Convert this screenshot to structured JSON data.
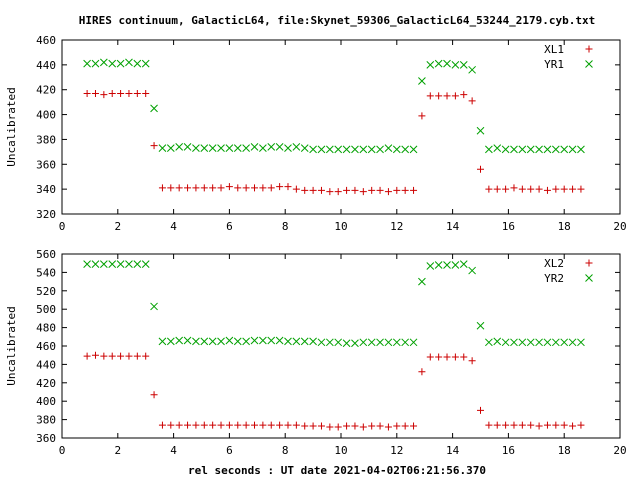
{
  "title": "HIRES continuum, GalacticL64, file:Skynet_59306_GalacticL64_53244_2179.cyb.txt",
  "xlabel": "rel seconds : UT date 2021-04-02T06:21:56.370",
  "colors": {
    "red": "#cc0000",
    "green": "#00a000",
    "axis": "#000000"
  },
  "chart_data": [
    {
      "type": "scatter",
      "ylabel": "Uncalibrated",
      "xlim": [
        0,
        20
      ],
      "ylim": [
        320,
        460
      ],
      "xticks": [
        0,
        2,
        4,
        6,
        8,
        10,
        12,
        14,
        16,
        18,
        20
      ],
      "yticks": [
        320,
        340,
        360,
        380,
        400,
        420,
        440,
        460
      ],
      "grid": false,
      "legend": "top-right",
      "series": [
        {
          "name": "XL1",
          "marker": "plus",
          "color": "#cc0000",
          "points": [
            [
              0.9,
              417
            ],
            [
              1.2,
              417
            ],
            [
              1.5,
              416
            ],
            [
              1.8,
              417
            ],
            [
              2.1,
              417
            ],
            [
              2.4,
              417
            ],
            [
              2.7,
              417
            ],
            [
              3.0,
              417
            ],
            [
              3.3,
              375
            ],
            [
              3.6,
              341
            ],
            [
              3.9,
              341
            ],
            [
              4.2,
              341
            ],
            [
              4.5,
              341
            ],
            [
              4.8,
              341
            ],
            [
              5.1,
              341
            ],
            [
              5.4,
              341
            ],
            [
              5.7,
              341
            ],
            [
              6.0,
              342
            ],
            [
              6.3,
              341
            ],
            [
              6.6,
              341
            ],
            [
              6.9,
              341
            ],
            [
              7.2,
              341
            ],
            [
              7.5,
              341
            ],
            [
              7.8,
              342
            ],
            [
              8.1,
              342
            ],
            [
              8.4,
              340
            ],
            [
              8.7,
              339
            ],
            [
              9.0,
              339
            ],
            [
              9.3,
              339
            ],
            [
              9.6,
              338
            ],
            [
              9.9,
              338
            ],
            [
              10.2,
              339
            ],
            [
              10.5,
              339
            ],
            [
              10.8,
              338
            ],
            [
              11.1,
              339
            ],
            [
              11.4,
              339
            ],
            [
              11.7,
              338
            ],
            [
              12.0,
              339
            ],
            [
              12.3,
              339
            ],
            [
              12.6,
              339
            ],
            [
              12.9,
              399
            ],
            [
              13.2,
              415
            ],
            [
              13.5,
              415
            ],
            [
              13.8,
              415
            ],
            [
              14.1,
              415
            ],
            [
              14.4,
              416
            ],
            [
              14.7,
              411
            ],
            [
              15.0,
              356
            ],
            [
              15.3,
              340
            ],
            [
              15.6,
              340
            ],
            [
              15.9,
              340
            ],
            [
              16.2,
              341
            ],
            [
              16.5,
              340
            ],
            [
              16.8,
              340
            ],
            [
              17.1,
              340
            ],
            [
              17.4,
              339
            ],
            [
              17.7,
              340
            ],
            [
              18.0,
              340
            ],
            [
              18.3,
              340
            ],
            [
              18.6,
              340
            ]
          ]
        },
        {
          "name": "YR1",
          "marker": "cross",
          "color": "#00a000",
          "points": [
            [
              0.9,
              441
            ],
            [
              1.2,
              441
            ],
            [
              1.5,
              442
            ],
            [
              1.8,
              441
            ],
            [
              2.1,
              441
            ],
            [
              2.4,
              442
            ],
            [
              2.7,
              441
            ],
            [
              3.0,
              441
            ],
            [
              3.3,
              405
            ],
            [
              3.6,
              373
            ],
            [
              3.9,
              373
            ],
            [
              4.2,
              374
            ],
            [
              4.5,
              374
            ],
            [
              4.8,
              373
            ],
            [
              5.1,
              373
            ],
            [
              5.4,
              373
            ],
            [
              5.7,
              373
            ],
            [
              6.0,
              373
            ],
            [
              6.3,
              373
            ],
            [
              6.6,
              373
            ],
            [
              6.9,
              374
            ],
            [
              7.2,
              373
            ],
            [
              7.5,
              374
            ],
            [
              7.8,
              374
            ],
            [
              8.1,
              373
            ],
            [
              8.4,
              374
            ],
            [
              8.7,
              373
            ],
            [
              9.0,
              372
            ],
            [
              9.3,
              372
            ],
            [
              9.6,
              372
            ],
            [
              9.9,
              372
            ],
            [
              10.2,
              372
            ],
            [
              10.5,
              372
            ],
            [
              10.8,
              372
            ],
            [
              11.1,
              372
            ],
            [
              11.4,
              372
            ],
            [
              11.7,
              373
            ],
            [
              12.0,
              372
            ],
            [
              12.3,
              372
            ],
            [
              12.6,
              372
            ],
            [
              12.9,
              427
            ],
            [
              13.2,
              440
            ],
            [
              13.5,
              441
            ],
            [
              13.8,
              441
            ],
            [
              14.1,
              440
            ],
            [
              14.4,
              440
            ],
            [
              14.7,
              436
            ],
            [
              15.0,
              387
            ],
            [
              15.3,
              372
            ],
            [
              15.6,
              373
            ],
            [
              15.9,
              372
            ],
            [
              16.2,
              372
            ],
            [
              16.5,
              372
            ],
            [
              16.8,
              372
            ],
            [
              17.1,
              372
            ],
            [
              17.4,
              372
            ],
            [
              17.7,
              372
            ],
            [
              18.0,
              372
            ],
            [
              18.3,
              372
            ],
            [
              18.6,
              372
            ]
          ]
        }
      ]
    },
    {
      "type": "scatter",
      "ylabel": "Uncalibrated",
      "xlim": [
        0,
        20
      ],
      "ylim": [
        360,
        560
      ],
      "xticks": [
        0,
        2,
        4,
        6,
        8,
        10,
        12,
        14,
        16,
        18,
        20
      ],
      "yticks": [
        360,
        380,
        400,
        420,
        440,
        460,
        480,
        500,
        520,
        540,
        560
      ],
      "grid": false,
      "legend": "top-right",
      "series": [
        {
          "name": "XL2",
          "marker": "plus",
          "color": "#cc0000",
          "points": [
            [
              0.9,
              449
            ],
            [
              1.2,
              450
            ],
            [
              1.5,
              449
            ],
            [
              1.8,
              449
            ],
            [
              2.1,
              449
            ],
            [
              2.4,
              449
            ],
            [
              2.7,
              449
            ],
            [
              3.0,
              449
            ],
            [
              3.3,
              407
            ],
            [
              3.6,
              374
            ],
            [
              3.9,
              374
            ],
            [
              4.2,
              374
            ],
            [
              4.5,
              374
            ],
            [
              4.8,
              374
            ],
            [
              5.1,
              374
            ],
            [
              5.4,
              374
            ],
            [
              5.7,
              374
            ],
            [
              6.0,
              374
            ],
            [
              6.3,
              374
            ],
            [
              6.6,
              374
            ],
            [
              6.9,
              374
            ],
            [
              7.2,
              374
            ],
            [
              7.5,
              374
            ],
            [
              7.8,
              374
            ],
            [
              8.1,
              374
            ],
            [
              8.4,
              374
            ],
            [
              8.7,
              373
            ],
            [
              9.0,
              373
            ],
            [
              9.3,
              373
            ],
            [
              9.6,
              372
            ],
            [
              9.9,
              372
            ],
            [
              10.2,
              373
            ],
            [
              10.5,
              373
            ],
            [
              10.8,
              372
            ],
            [
              11.1,
              373
            ],
            [
              11.4,
              373
            ],
            [
              11.7,
              372
            ],
            [
              12.0,
              373
            ],
            [
              12.3,
              373
            ],
            [
              12.6,
              373
            ],
            [
              12.9,
              432
            ],
            [
              13.2,
              448
            ],
            [
              13.5,
              448
            ],
            [
              13.8,
              448
            ],
            [
              14.1,
              448
            ],
            [
              14.4,
              448
            ],
            [
              14.7,
              444
            ],
            [
              15.0,
              390
            ],
            [
              15.3,
              374
            ],
            [
              15.6,
              374
            ],
            [
              15.9,
              374
            ],
            [
              16.2,
              374
            ],
            [
              16.5,
              374
            ],
            [
              16.8,
              374
            ],
            [
              17.1,
              373
            ],
            [
              17.4,
              374
            ],
            [
              17.7,
              374
            ],
            [
              18.0,
              374
            ],
            [
              18.3,
              373
            ],
            [
              18.6,
              374
            ]
          ]
        },
        {
          "name": "YR2",
          "marker": "cross",
          "color": "#00a000",
          "points": [
            [
              0.9,
              549
            ],
            [
              1.2,
              549
            ],
            [
              1.5,
              549
            ],
            [
              1.8,
              549
            ],
            [
              2.1,
              549
            ],
            [
              2.4,
              549
            ],
            [
              2.7,
              549
            ],
            [
              3.0,
              549
            ],
            [
              3.3,
              503
            ],
            [
              3.6,
              465
            ],
            [
              3.9,
              465
            ],
            [
              4.2,
              466
            ],
            [
              4.5,
              466
            ],
            [
              4.8,
              465
            ],
            [
              5.1,
              465
            ],
            [
              5.4,
              465
            ],
            [
              5.7,
              465
            ],
            [
              6.0,
              466
            ],
            [
              6.3,
              465
            ],
            [
              6.6,
              465
            ],
            [
              6.9,
              466
            ],
            [
              7.2,
              466
            ],
            [
              7.5,
              466
            ],
            [
              7.8,
              466
            ],
            [
              8.1,
              465
            ],
            [
              8.4,
              465
            ],
            [
              8.7,
              465
            ],
            [
              9.0,
              465
            ],
            [
              9.3,
              464
            ],
            [
              9.6,
              464
            ],
            [
              9.9,
              464
            ],
            [
              10.2,
              463
            ],
            [
              10.5,
              463
            ],
            [
              10.8,
              464
            ],
            [
              11.1,
              464
            ],
            [
              11.4,
              464
            ],
            [
              11.7,
              464
            ],
            [
              12.0,
              464
            ],
            [
              12.3,
              464
            ],
            [
              12.6,
              464
            ],
            [
              12.9,
              530
            ],
            [
              13.2,
              547
            ],
            [
              13.5,
              548
            ],
            [
              13.8,
              548
            ],
            [
              14.1,
              548
            ],
            [
              14.4,
              549
            ],
            [
              14.7,
              542
            ],
            [
              15.0,
              482
            ],
            [
              15.3,
              464
            ],
            [
              15.6,
              465
            ],
            [
              15.9,
              464
            ],
            [
              16.2,
              464
            ],
            [
              16.5,
              464
            ],
            [
              16.8,
              464
            ],
            [
              17.1,
              464
            ],
            [
              17.4,
              464
            ],
            [
              17.7,
              464
            ],
            [
              18.0,
              464
            ],
            [
              18.3,
              464
            ],
            [
              18.6,
              464
            ]
          ]
        }
      ]
    }
  ]
}
